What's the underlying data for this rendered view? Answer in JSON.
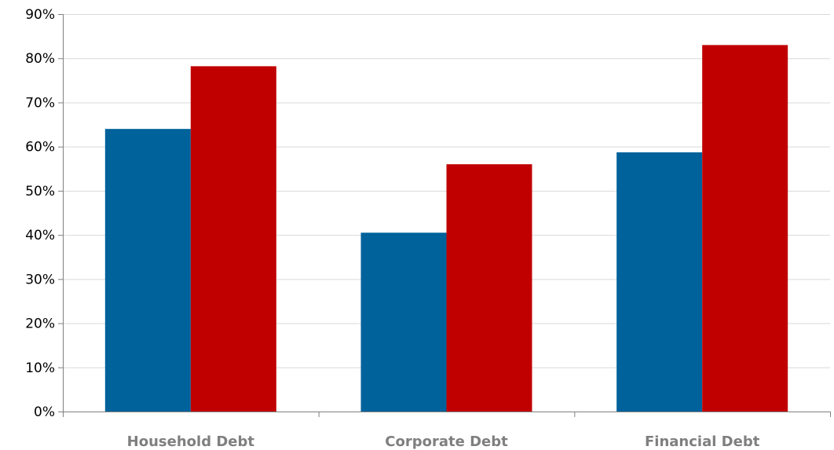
{
  "chart_data": {
    "type": "bar",
    "categories": [
      "Household Debt",
      "Corporate Debt",
      "Financial Debt"
    ],
    "series": [
      {
        "values": [
          64,
          40.5,
          58.7
        ],
        "color": "#00629b"
      },
      {
        "values": [
          78.2,
          56,
          83
        ],
        "color": "#c00000"
      }
    ],
    "y_ticks": [
      "0%",
      "10%",
      "20%",
      "30%",
      "40%",
      "50%",
      "60%",
      "70%",
      "80%",
      "90%"
    ],
    "ylim": [
      0,
      90
    ],
    "grid": true,
    "legend": "none",
    "title": "",
    "xlabel": "",
    "ylabel": ""
  }
}
